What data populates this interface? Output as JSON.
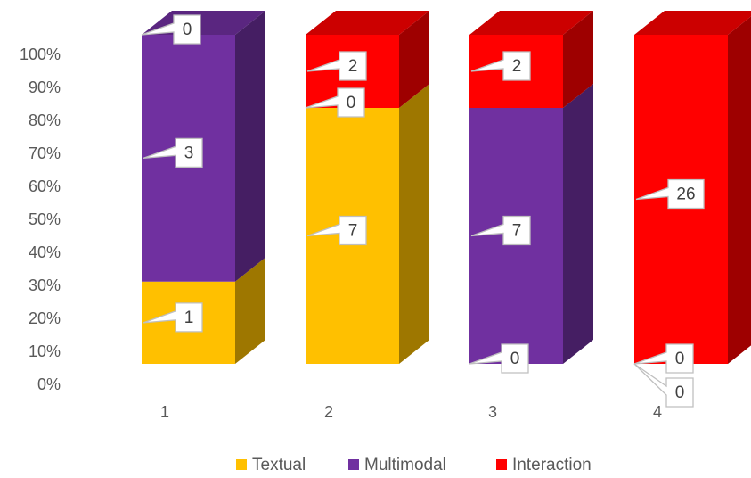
{
  "chart_data": {
    "type": "bar",
    "stacked": "percent",
    "three_d": true,
    "categories": [
      "1",
      "2",
      "3",
      "4"
    ],
    "series": [
      {
        "name": "Textual",
        "values": [
          1,
          7,
          0,
          0
        ],
        "color": "#FFC000"
      },
      {
        "name": "Multimodal",
        "values": [
          3,
          0,
          7,
          0
        ],
        "color": "#7030A0"
      },
      {
        "name": "Interaction",
        "values": [
          0,
          2,
          2,
          26
        ],
        "color": "#FF0000"
      }
    ],
    "y_ticks": [
      "0%",
      "10%",
      "20%",
      "30%",
      "40%",
      "50%",
      "60%",
      "70%",
      "80%",
      "90%",
      "100%"
    ],
    "ylim": [
      0,
      100
    ],
    "grid": false,
    "legend": "bottom",
    "title": "",
    "xlabel": "",
    "ylabel": ""
  }
}
